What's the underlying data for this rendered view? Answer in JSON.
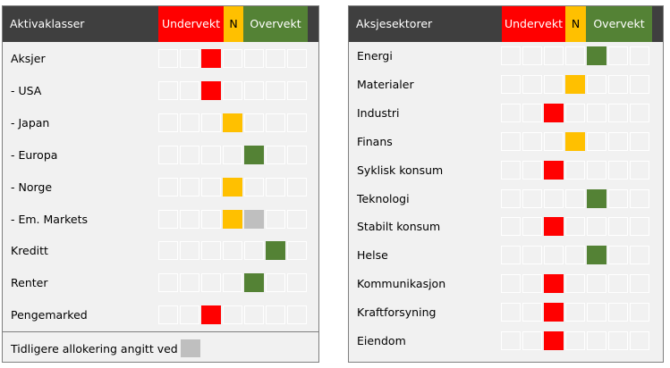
{
  "colors": {
    "red": "#ff0000",
    "yellow": "#ffc000",
    "green": "#548235",
    "grey": "#bfbfbf",
    "header_bg": "#3f3f3f",
    "panel_bg": "#f1f1f1"
  },
  "left_panel": {
    "title": "Aktivaklasser",
    "header": {
      "under": "Undervekt",
      "neutral": "N",
      "over": "Overvekt"
    },
    "rows": [
      {
        "label": "Aksjer",
        "cells": [
          "",
          "",
          "red",
          "",
          "",
          "",
          ""
        ]
      },
      {
        "label": "- USA",
        "cells": [
          "",
          "",
          "red",
          "",
          "",
          "",
          ""
        ]
      },
      {
        "label": "- Japan",
        "cells": [
          "",
          "",
          "",
          "yellow",
          "",
          "",
          ""
        ]
      },
      {
        "label": "- Europa",
        "cells": [
          "",
          "",
          "",
          "",
          "green",
          "",
          ""
        ]
      },
      {
        "label": "- Norge",
        "cells": [
          "",
          "",
          "",
          "yellow",
          "",
          "",
          ""
        ]
      },
      {
        "label": "- Em. Markets",
        "cells": [
          "",
          "",
          "",
          "yellow",
          "grey",
          "",
          ""
        ]
      },
      {
        "label": "Kreditt",
        "cells": [
          "",
          "",
          "",
          "",
          "",
          "green",
          ""
        ]
      },
      {
        "label": "Renter",
        "cells": [
          "",
          "",
          "",
          "",
          "green",
          "",
          ""
        ]
      },
      {
        "label": "Pengemarked",
        "cells": [
          "",
          "",
          "red",
          "",
          "",
          "",
          ""
        ]
      }
    ],
    "footnote": "Tidligere allokering angitt ved"
  },
  "right_panel": {
    "title": "Aksjesektorer",
    "header": {
      "under": "Undervekt",
      "neutral": "N",
      "over": "Overvekt"
    },
    "rows": [
      {
        "label": "Energi",
        "cells": [
          "",
          "",
          "",
          "",
          "green",
          "",
          ""
        ]
      },
      {
        "label": "Materialer",
        "cells": [
          "",
          "",
          "",
          "yellow",
          "",
          "",
          ""
        ]
      },
      {
        "label": "Industri",
        "cells": [
          "",
          "",
          "red",
          "",
          "",
          "",
          ""
        ]
      },
      {
        "label": "Finans",
        "cells": [
          "",
          "",
          "",
          "yellow",
          "",
          "",
          ""
        ]
      },
      {
        "label": "Syklisk konsum",
        "cells": [
          "",
          "",
          "red",
          "",
          "",
          "",
          ""
        ]
      },
      {
        "label": "Teknologi",
        "cells": [
          "",
          "",
          "",
          "",
          "green",
          "",
          ""
        ]
      },
      {
        "label": "Stabilt konsum",
        "cells": [
          "",
          "",
          "red",
          "",
          "",
          "",
          ""
        ]
      },
      {
        "label": "Helse",
        "cells": [
          "",
          "",
          "",
          "",
          "green",
          "",
          ""
        ]
      },
      {
        "label": "Kommunikasjon",
        "cells": [
          "",
          "",
          "red",
          "",
          "",
          "",
          ""
        ]
      },
      {
        "label": "Kraftforsyning",
        "cells": [
          "",
          "",
          "red",
          "",
          "",
          "",
          ""
        ]
      },
      {
        "label": "Eiendom",
        "cells": [
          "",
          "",
          "red",
          "",
          "",
          "",
          ""
        ]
      }
    ]
  }
}
